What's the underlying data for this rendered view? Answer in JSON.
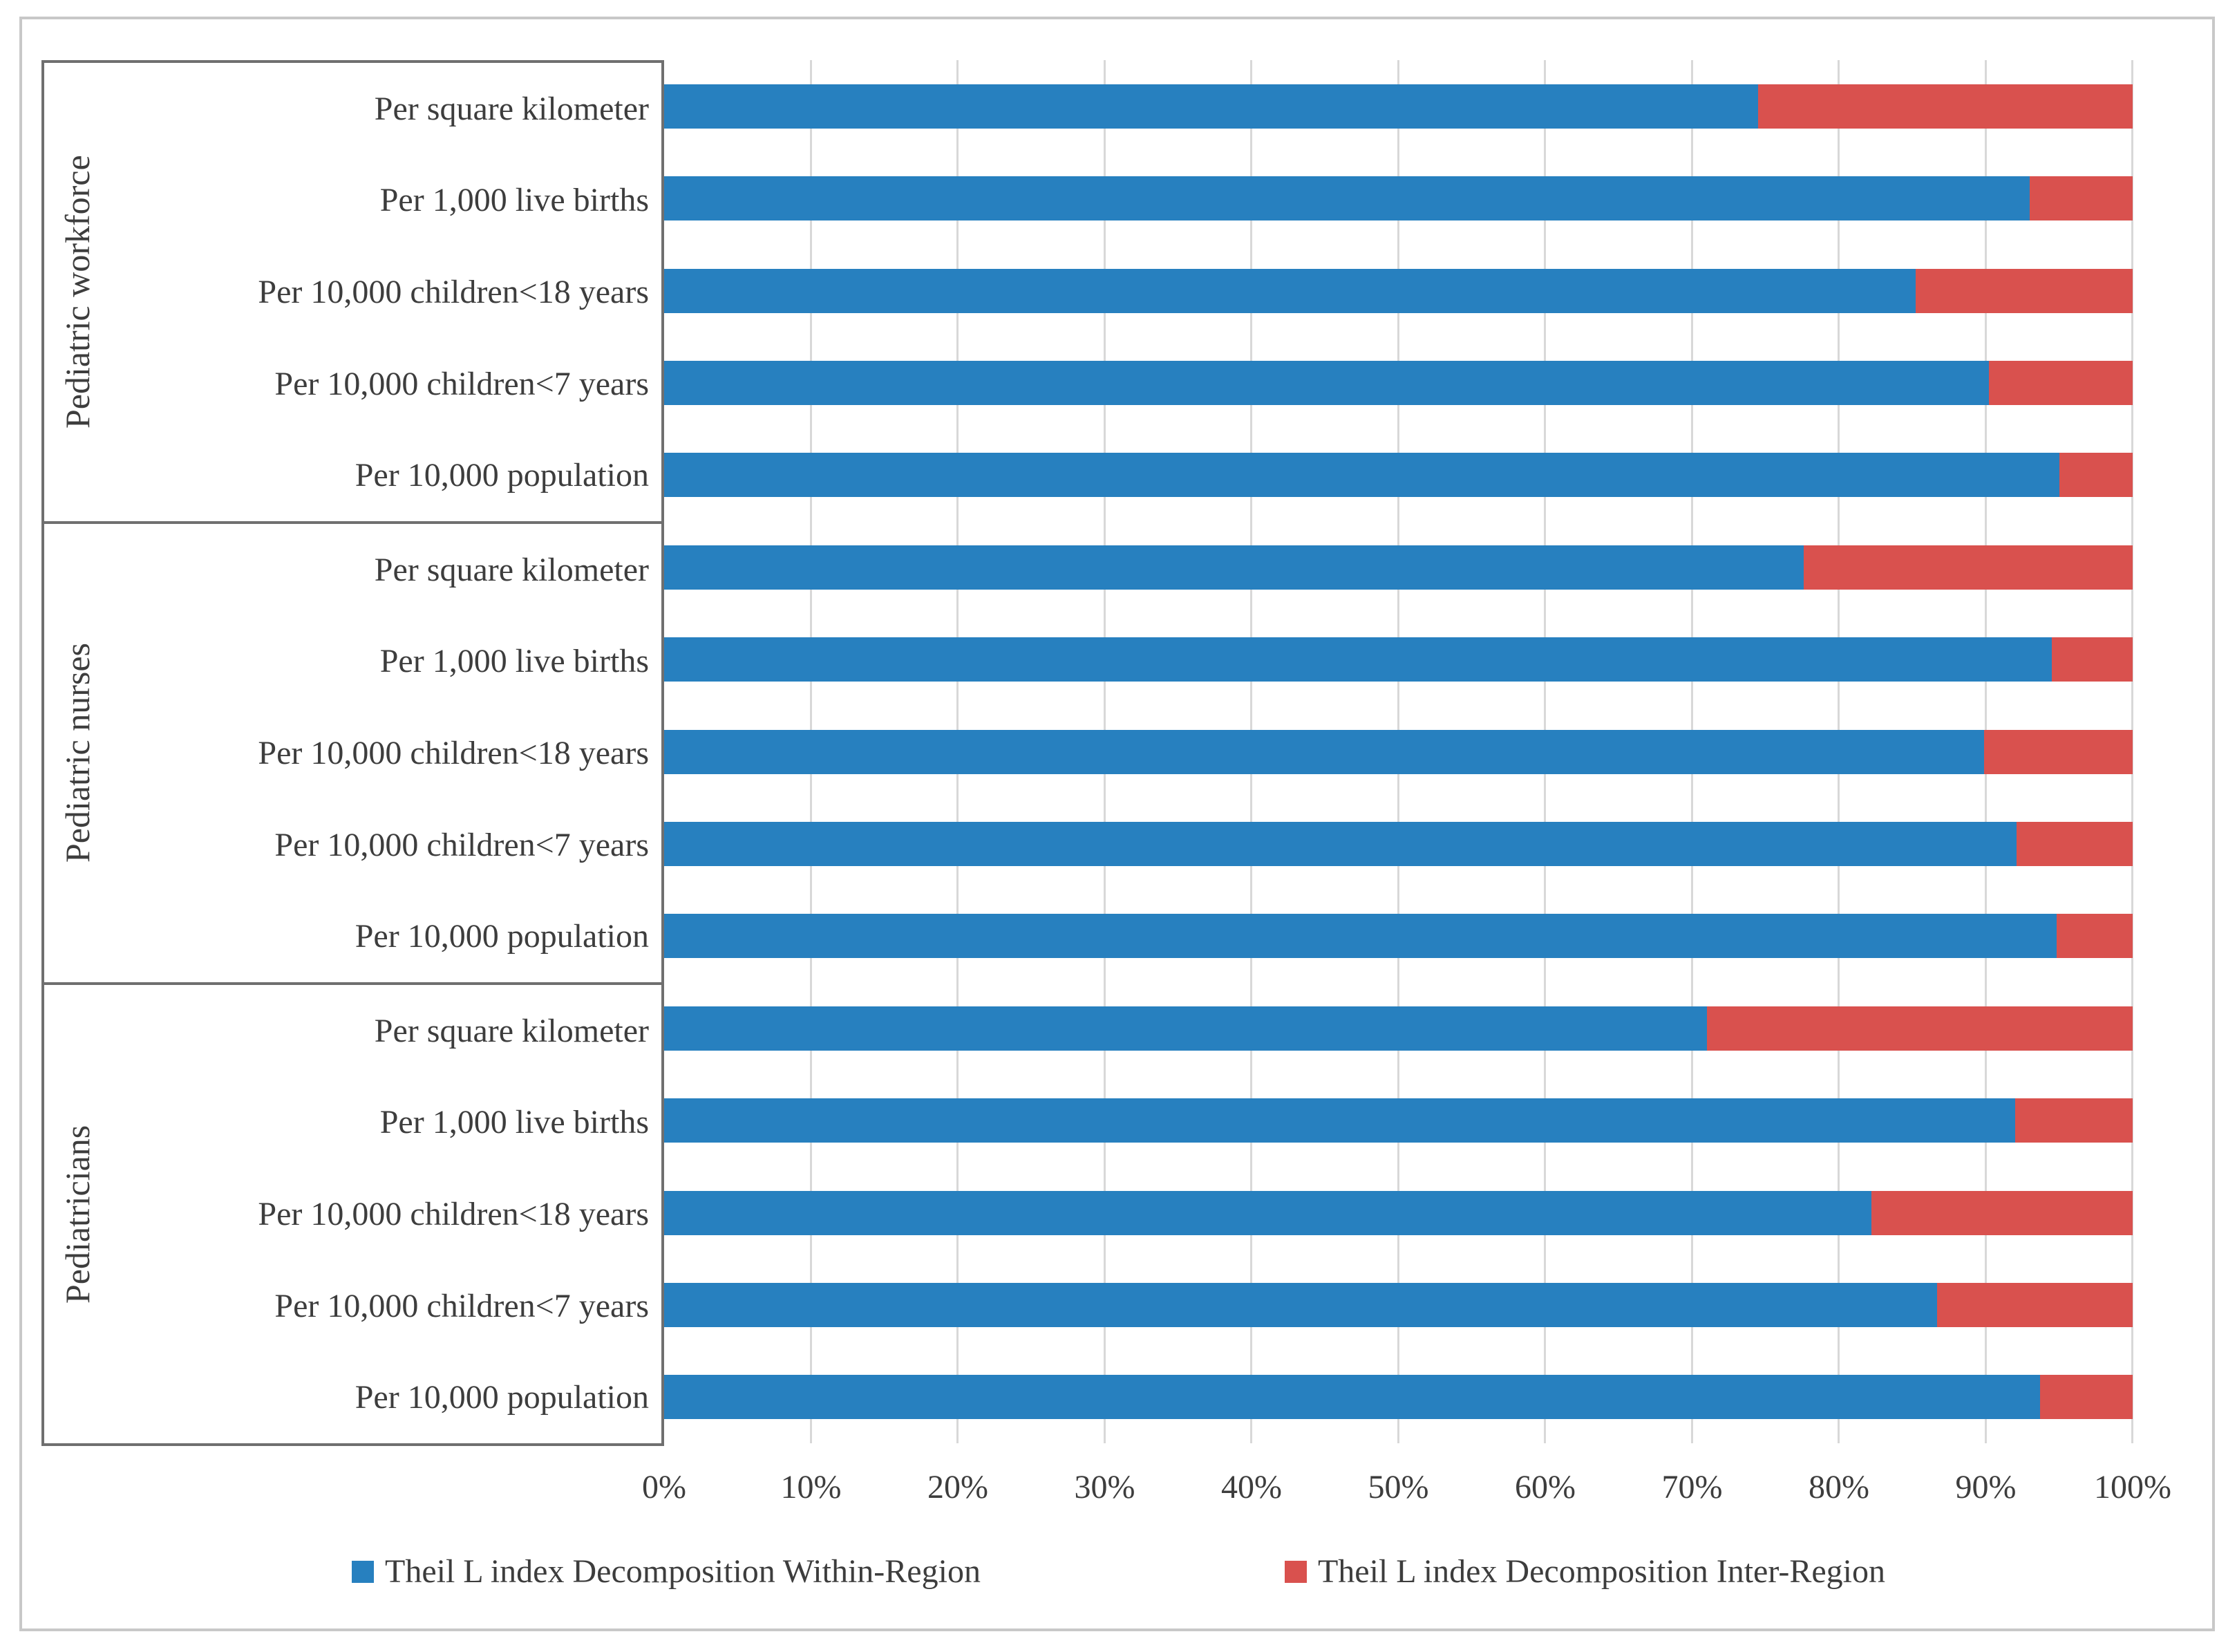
{
  "chart_data": {
    "type": "bar",
    "variant": "horizontal-100%-stacked",
    "title": "",
    "xlabel": "",
    "ylabel": "",
    "axis_range": [
      0,
      100
    ],
    "grid": true,
    "x_ticks": [
      "0%",
      "10%",
      "20%",
      "30%",
      "40%",
      "50%",
      "60%",
      "70%",
      "80%",
      "90%",
      "100%"
    ],
    "series_names": [
      "Theil L index Decomposition Within-Region",
      "Theil L index Decomposition Inter-Region"
    ],
    "legend": [
      {
        "label": "Theil L index Decomposition Within-Region",
        "color": "#2780bf"
      },
      {
        "label": "Theil L index Decomposition Inter-Region",
        "color": "#d9514e"
      }
    ],
    "legend_position": "bottom",
    "groups": [
      {
        "name": "Pediatric workforce",
        "bars": [
          {
            "category": "Per square kilometer",
            "within": 74.5,
            "inter": 25.5
          },
          {
            "category": "Per 1,000 live births",
            "within": 93.0,
            "inter": 7.0
          },
          {
            "category": "Per 10,000 children<18 years",
            "within": 85.2,
            "inter": 14.8
          },
          {
            "category": "Per 10,000 children<7 years",
            "within": 90.2,
            "inter": 9.8
          },
          {
            "category": "Per 10,000 population",
            "within": 95.0,
            "inter": 5.0
          }
        ]
      },
      {
        "name": "Pediatric nurses",
        "bars": [
          {
            "category": "Per square kilometer",
            "within": 77.6,
            "inter": 22.4
          },
          {
            "category": "Per 1,000 live births",
            "within": 94.5,
            "inter": 5.5
          },
          {
            "category": "Per 10,000 children<18 years",
            "within": 89.9,
            "inter": 10.1
          },
          {
            "category": "Per 10,000 children<7 years",
            "within": 92.1,
            "inter": 7.9
          },
          {
            "category": "Per 10,000 population",
            "within": 94.8,
            "inter": 5.2
          }
        ]
      },
      {
        "name": "Pediatricians",
        "bars": [
          {
            "category": "Per square kilometer",
            "within": 71.0,
            "inter": 29.0
          },
          {
            "category": "Per 1,000 live births",
            "within": 92.0,
            "inter": 8.0
          },
          {
            "category": "Per 10,000 children<18 years",
            "within": 82.2,
            "inter": 17.8
          },
          {
            "category": "Per 10,000 children<7 years",
            "within": 86.7,
            "inter": 13.3
          },
          {
            "category": "Per 10,000 population",
            "within": 93.7,
            "inter": 6.3
          }
        ]
      }
    ],
    "colors": {
      "within_region": "#2780bf",
      "inter_region": "#d9514e",
      "gridline": "#d8d8d8",
      "panel_border": "#6f6f6f",
      "figure_border": "#c8c8c8",
      "text": "#3d3d3d"
    }
  }
}
